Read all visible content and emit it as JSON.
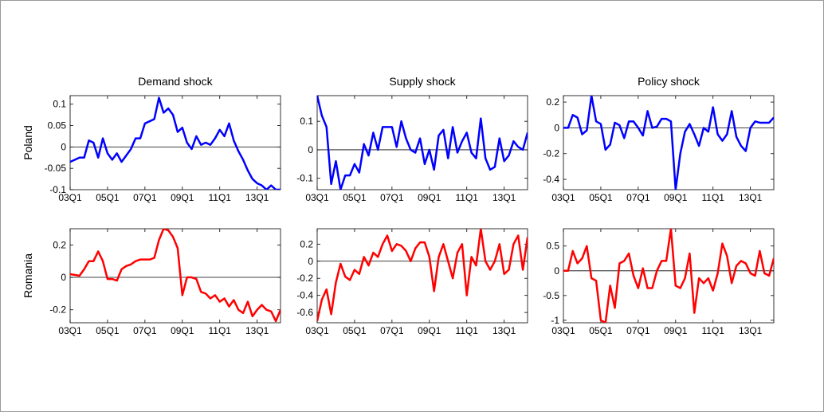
{
  "chart_data": [
    {
      "type": "line",
      "title": "Demand shock",
      "ylabel": "Poland",
      "color": "#0000ff",
      "categories": [
        "03Q1",
        null,
        null,
        null,
        null,
        null,
        null,
        null,
        "05Q1",
        null,
        null,
        null,
        null,
        null,
        null,
        null,
        "07Q1",
        null,
        null,
        null,
        null,
        null,
        null,
        null,
        "09Q1",
        null,
        null,
        null,
        null,
        null,
        null,
        null,
        "11Q1",
        null,
        null,
        null,
        null,
        null,
        null,
        null,
        "13Q1",
        null,
        null,
        null,
        null,
        null
      ],
      "values": [
        -0.035,
        -0.03,
        -0.025,
        -0.025,
        0.015,
        0.01,
        -0.025,
        0.02,
        -0.015,
        -0.03,
        -0.015,
        -0.035,
        -0.02,
        -0.005,
        0.02,
        0.02,
        0.055,
        0.06,
        0.065,
        0.115,
        0.08,
        0.09,
        0.075,
        0.035,
        0.045,
        0.01,
        -0.005,
        0.025,
        0.005,
        0.01,
        0.005,
        0.02,
        0.04,
        0.025,
        0.055,
        0.015,
        -0.01,
        -0.03,
        -0.055,
        -0.075,
        -0.085,
        -0.09,
        -0.1,
        -0.09,
        -0.1,
        -0.1
      ],
      "ylim": [
        -0.1,
        0.12
      ],
      "yticks": [
        -0.1,
        -0.05,
        0,
        0.05,
        0.1
      ]
    },
    {
      "type": "line",
      "title": "Supply shock",
      "color": "#0000ff",
      "categories": [
        "03Q1",
        null,
        null,
        null,
        null,
        null,
        null,
        null,
        "05Q1",
        null,
        null,
        null,
        null,
        null,
        null,
        null,
        "07Q1",
        null,
        null,
        null,
        null,
        null,
        null,
        null,
        "09Q1",
        null,
        null,
        null,
        null,
        null,
        null,
        null,
        "11Q1",
        null,
        null,
        null,
        null,
        null,
        null,
        null,
        "13Q1",
        null,
        null,
        null,
        null,
        null
      ],
      "values": [
        0.19,
        0.12,
        0.08,
        -0.12,
        -0.04,
        -0.14,
        -0.09,
        -0.09,
        -0.05,
        -0.08,
        0.02,
        -0.02,
        0.06,
        0.0,
        0.08,
        0.08,
        0.08,
        0.01,
        0.1,
        0.04,
        0.0,
        -0.01,
        0.04,
        -0.05,
        0.0,
        -0.07,
        0.05,
        0.07,
        -0.03,
        0.08,
        -0.01,
        0.03,
        0.06,
        -0.01,
        -0.03,
        0.11,
        -0.03,
        -0.07,
        -0.06,
        0.04,
        -0.04,
        -0.02,
        0.03,
        0.01,
        0.0,
        0.06
      ],
      "ylim": [
        -0.14,
        0.19
      ],
      "yticks": [
        -0.1,
        0,
        0.1
      ]
    },
    {
      "type": "line",
      "title": "Policy shock",
      "color": "#0000ff",
      "categories": [
        "03Q1",
        null,
        null,
        null,
        null,
        null,
        null,
        null,
        "05Q1",
        null,
        null,
        null,
        null,
        null,
        null,
        null,
        "07Q1",
        null,
        null,
        null,
        null,
        null,
        null,
        null,
        "09Q1",
        null,
        null,
        null,
        null,
        null,
        null,
        null,
        "11Q1",
        null,
        null,
        null,
        null,
        null,
        null,
        null,
        "13Q1",
        null,
        null,
        null,
        null,
        null
      ],
      "values": [
        0.0,
        0.0,
        0.1,
        0.08,
        -0.05,
        -0.02,
        0.25,
        0.05,
        0.03,
        -0.17,
        -0.13,
        0.04,
        0.02,
        -0.08,
        0.05,
        0.05,
        0.0,
        -0.06,
        0.13,
        0.0,
        0.01,
        0.07,
        0.07,
        0.05,
        -0.48,
        -0.2,
        -0.03,
        0.03,
        -0.05,
        -0.14,
        0.0,
        -0.03,
        0.16,
        -0.05,
        -0.1,
        -0.05,
        0.13,
        -0.07,
        -0.14,
        -0.18,
        0.0,
        0.05,
        0.04,
        0.04,
        0.04,
        0.08
      ],
      "ylim": [
        -0.48,
        0.25
      ],
      "yticks": [
        -0.4,
        -0.2,
        0,
        0.2
      ]
    },
    {
      "type": "line",
      "ylabel": "Romania",
      "color": "#ff0000",
      "categories": [
        "03Q1",
        null,
        null,
        null,
        null,
        null,
        null,
        null,
        "05Q1",
        null,
        null,
        null,
        null,
        null,
        null,
        null,
        "07Q1",
        null,
        null,
        null,
        null,
        null,
        null,
        null,
        "09Q1",
        null,
        null,
        null,
        null,
        null,
        null,
        null,
        "11Q1",
        null,
        null,
        null,
        null,
        null,
        null,
        null,
        "13Q1",
        null,
        null,
        null,
        null,
        null
      ],
      "values": [
        0.02,
        0.015,
        0.01,
        0.05,
        0.1,
        0.1,
        0.16,
        0.1,
        -0.01,
        -0.01,
        -0.02,
        0.05,
        0.07,
        0.08,
        0.1,
        0.11,
        0.11,
        0.11,
        0.12,
        0.23,
        0.3,
        0.29,
        0.25,
        0.18,
        -0.11,
        0.0,
        0.0,
        -0.01,
        -0.09,
        -0.1,
        -0.13,
        -0.11,
        -0.15,
        -0.13,
        -0.18,
        -0.14,
        -0.2,
        -0.22,
        -0.15,
        -0.24,
        -0.2,
        -0.17,
        -0.2,
        -0.21,
        -0.27,
        -0.2
      ],
      "ylim": [
        -0.28,
        0.3
      ],
      "yticks": [
        -0.2,
        0,
        0.2
      ]
    },
    {
      "type": "line",
      "color": "#ff0000",
      "categories": [
        "03Q1",
        null,
        null,
        null,
        null,
        null,
        null,
        null,
        "05Q1",
        null,
        null,
        null,
        null,
        null,
        null,
        null,
        "07Q1",
        null,
        null,
        null,
        null,
        null,
        null,
        null,
        "09Q1",
        null,
        null,
        null,
        null,
        null,
        null,
        null,
        "11Q1",
        null,
        null,
        null,
        null,
        null,
        null,
        null,
        "13Q1",
        null,
        null,
        null,
        null,
        null
      ],
      "values": [
        -0.7,
        -0.45,
        -0.33,
        -0.62,
        -0.25,
        -0.03,
        -0.18,
        -0.22,
        -0.1,
        -0.15,
        0.05,
        -0.05,
        0.1,
        0.05,
        0.2,
        0.3,
        0.12,
        0.2,
        0.18,
        0.12,
        0.0,
        0.15,
        0.22,
        0.22,
        0.05,
        -0.35,
        0.05,
        0.2,
        0.0,
        -0.2,
        0.1,
        0.2,
        -0.4,
        0.05,
        -0.05,
        0.38,
        0.0,
        -0.1,
        0.0,
        0.2,
        -0.15,
        -0.1,
        0.2,
        0.3,
        -0.1,
        0.28
      ],
      "ylim": [
        -0.72,
        0.38
      ],
      "yticks": [
        -0.6,
        -0.4,
        -0.2,
        0,
        0.2
      ]
    },
    {
      "type": "line",
      "color": "#ff0000",
      "categories": [
        "03Q1",
        null,
        null,
        null,
        null,
        null,
        null,
        null,
        "05Q1",
        null,
        null,
        null,
        null,
        null,
        null,
        null,
        "07Q1",
        null,
        null,
        null,
        null,
        null,
        null,
        null,
        "09Q1",
        null,
        null,
        null,
        null,
        null,
        null,
        null,
        "11Q1",
        null,
        null,
        null,
        null,
        null,
        null,
        null,
        "13Q1",
        null,
        null,
        null,
        null,
        null
      ],
      "values": [
        0.0,
        0.0,
        0.4,
        0.15,
        0.25,
        0.5,
        -0.15,
        -0.2,
        -1.0,
        -1.05,
        -0.3,
        -0.75,
        0.15,
        0.2,
        0.35,
        -0.1,
        -0.35,
        0.05,
        -0.35,
        -0.35,
        0.0,
        0.2,
        0.2,
        0.85,
        -0.3,
        -0.35,
        -0.15,
        0.35,
        -0.85,
        -0.15,
        -0.25,
        -0.15,
        -0.4,
        -0.05,
        0.55,
        0.3,
        -0.25,
        0.1,
        0.2,
        0.15,
        -0.05,
        -0.1,
        0.4,
        -0.05,
        -0.1,
        0.25
      ],
      "ylim": [
        -1.05,
        0.85
      ],
      "yticks": [
        -1,
        -0.5,
        0,
        0.5
      ]
    }
  ]
}
